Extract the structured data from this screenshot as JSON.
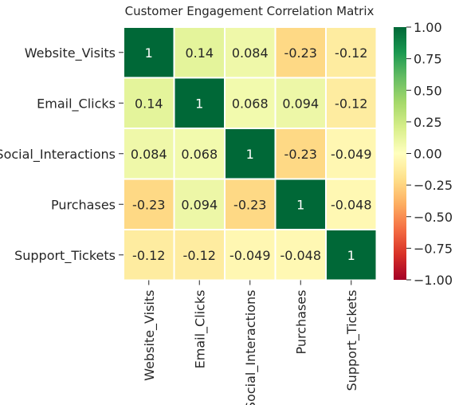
{
  "chart_data": {
    "type": "heatmap",
    "title": "Customer Engagement Correlation Matrix",
    "categories": [
      "Website_Visits",
      "Email_Clicks",
      "Social_Interactions",
      "Purchases",
      "Support_Tickets"
    ],
    "values": [
      [
        1,
        0.14,
        0.084,
        -0.23,
        -0.12
      ],
      [
        0.14,
        1,
        0.068,
        0.094,
        -0.12
      ],
      [
        0.084,
        0.068,
        1,
        -0.23,
        -0.049
      ],
      [
        -0.23,
        0.094,
        -0.23,
        1,
        -0.048
      ],
      [
        -0.12,
        -0.12,
        -0.049,
        -0.048,
        1
      ]
    ],
    "value_labels": [
      [
        "1",
        "0.14",
        "0.084",
        "-0.23",
        "-0.12"
      ],
      [
        "0.14",
        "1",
        "0.068",
        "0.094",
        "-0.12"
      ],
      [
        "0.084",
        "0.068",
        "1",
        "-0.23",
        "-0.049"
      ],
      [
        "-0.23",
        "0.094",
        "-0.23",
        "1",
        "-0.048"
      ],
      [
        "-0.12",
        "-0.12",
        "-0.049",
        "-0.048",
        "1"
      ]
    ],
    "colormap": "RdYlGn",
    "vmin": -1,
    "vmax": 1,
    "colorbar_ticks": [
      1.0,
      0.75,
      0.5,
      0.25,
      0.0,
      -0.25,
      -0.5,
      -0.75,
      -1.0
    ],
    "colorbar_tick_labels": [
      "1.00",
      "0.75",
      "0.50",
      "0.25",
      "0.00",
      "−0.25",
      "−0.50",
      "−0.75",
      "−1.00"
    ],
    "cell_border_color": "#ffffff",
    "legend": "colorbar-right"
  }
}
